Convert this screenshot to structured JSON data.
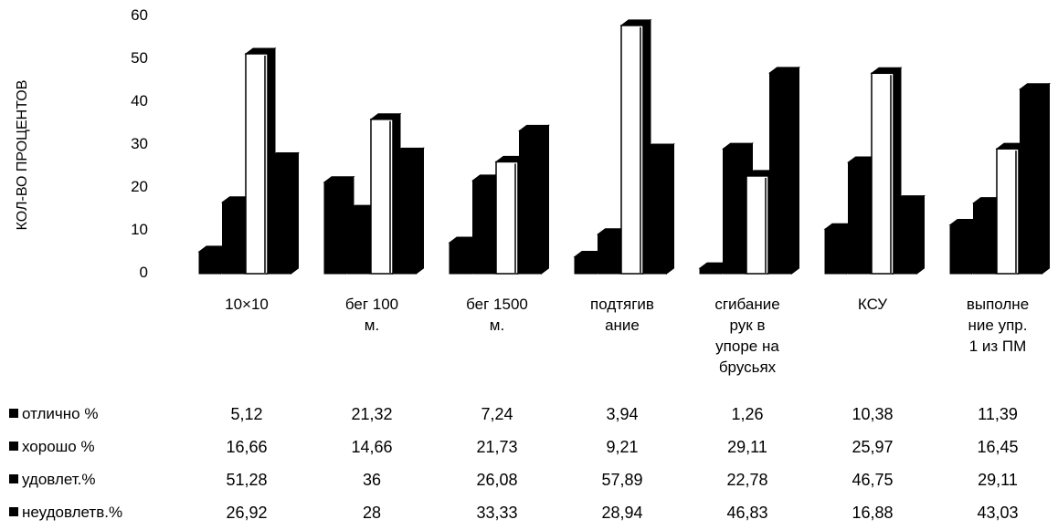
{
  "chart_data": {
    "type": "bar",
    "ylabel": "КОЛ-ВО ПРОЦЕНТОВ",
    "ylim": [
      0,
      60
    ],
    "yticks": [
      0,
      10,
      20,
      30,
      40,
      50,
      60
    ],
    "categories": [
      "10×10",
      "бег 100\nм.",
      "бег 1500\nм.",
      "подтягив\nание",
      "сгибание\nрук в\nупоре на\nбрусьях",
      "КСУ",
      "выполне\nние упр.\n1 из ПМ"
    ],
    "legend_placement": "bottom-table",
    "series": [
      {
        "name": "отлично %",
        "fill": "#000000",
        "values": [
          5.12,
          21.32,
          7.24,
          3.94,
          1.26,
          10.38,
          11.39
        ],
        "labels": [
          "5,12",
          "21,32",
          "7,24",
          "3,94",
          "1,26",
          "10,38",
          "11,39"
        ]
      },
      {
        "name": "хорошо %",
        "fill": "#000000",
        "values": [
          16.66,
          14.66,
          21.73,
          9.21,
          29.11,
          25.97,
          16.45
        ],
        "labels": [
          "16,66",
          "14,66",
          "21,73",
          "9,21",
          "29,11",
          "25,97",
          "16,45"
        ]
      },
      {
        "name": "удовлет.%",
        "fill": "#ffffff",
        "values": [
          51.28,
          36,
          26.08,
          57.89,
          22.78,
          46.75,
          29.11
        ],
        "labels": [
          "51,28",
          "36",
          "26,08",
          "57,89",
          "22,78",
          "46,75",
          "29,11"
        ]
      },
      {
        "name": "неудовлетв.%",
        "fill": "#000000",
        "values": [
          26.92,
          28,
          33.33,
          28.94,
          46.83,
          16.88,
          43.03
        ],
        "labels": [
          "26,92",
          "28",
          "33,33",
          "28,94",
          "46,83",
          "16,88",
          "43,03"
        ]
      }
    ]
  }
}
